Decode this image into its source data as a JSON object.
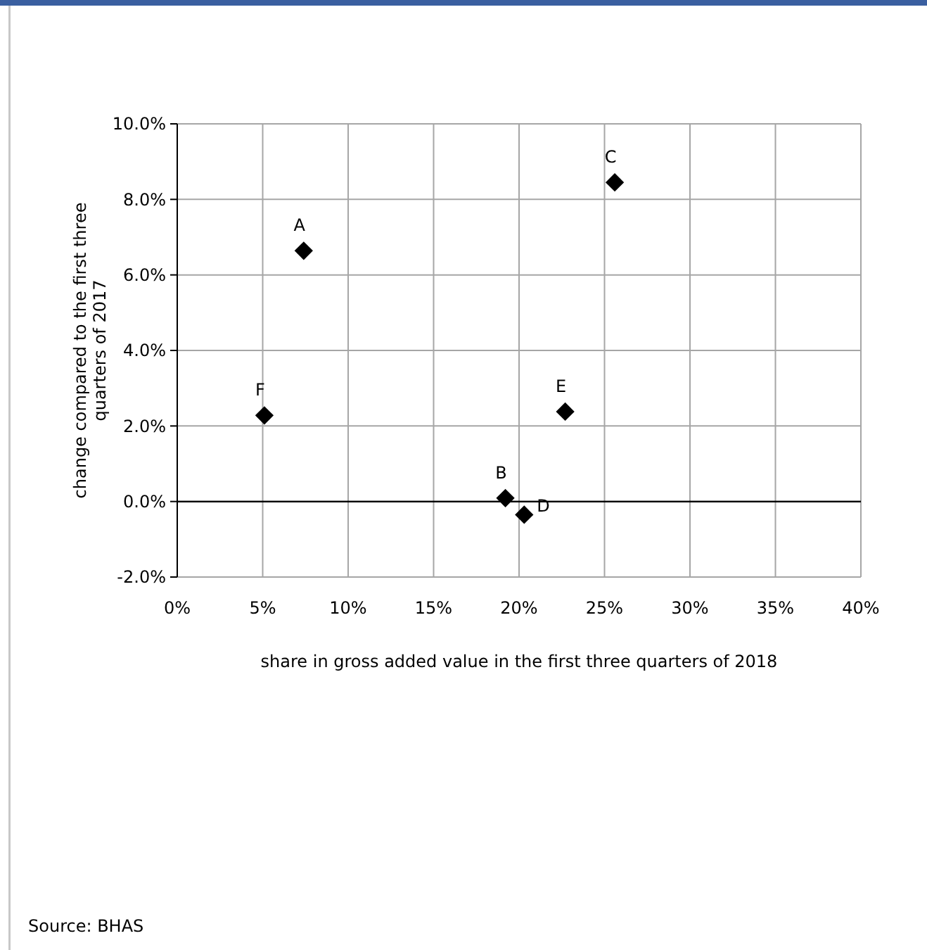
{
  "chart_data": {
    "type": "scatter",
    "xlabel": "share in gross added value in the first three quarters of 2018",
    "ylabel": "change compared to the first three quarters of 2017",
    "x": [
      7.4,
      19.2,
      25.6,
      20.3,
      22.7,
      5.1
    ],
    "series": [
      {
        "color": "#000000",
        "values": [
          6.64,
          0.09,
          8.45,
          -0.35,
          2.38,
          2.28
        ]
      }
    ],
    "marker": "diamond",
    "grid": true,
    "xlim": [
      0,
      40
    ],
    "xticks": [
      {
        "value": 0,
        "label": "0%"
      },
      {
        "value": 5,
        "label": "5%"
      },
      {
        "value": 10,
        "label": "10%"
      },
      {
        "value": 15,
        "label": "15%"
      },
      {
        "value": 20,
        "label": "20%"
      },
      {
        "value": 25,
        "label": "25%"
      },
      {
        "value": 30,
        "label": "30%"
      },
      {
        "value": 35,
        "label": "35%"
      },
      {
        "value": 40,
        "label": "40%"
      }
    ],
    "ylim": [
      -2,
      10
    ],
    "yticks": [
      {
        "value": -2,
        "label": "-2.0%"
      },
      {
        "value": 0,
        "label": "0.0%"
      },
      {
        "value": 2,
        "label": "2.0%"
      },
      {
        "value": 4,
        "label": "4.0%"
      },
      {
        "value": 6,
        "label": "6.0%"
      },
      {
        "value": 8,
        "label": "8.0%"
      },
      {
        "value": 10,
        "label": "10.0%"
      }
    ],
    "annotations": [
      {
        "text": "A",
        "x": 7.4,
        "y": 6.64
      },
      {
        "text": "B",
        "x": 19.2,
        "y": 0.09
      },
      {
        "text": "C",
        "x": 25.6,
        "y": 8.45
      },
      {
        "text": "D",
        "x": 20.3,
        "y": -0.35
      },
      {
        "text": "E",
        "x": 22.7,
        "y": 2.38
      },
      {
        "text": "F",
        "x": 5.1,
        "y": 2.28
      },
      "Source: BHAS"
    ]
  }
}
